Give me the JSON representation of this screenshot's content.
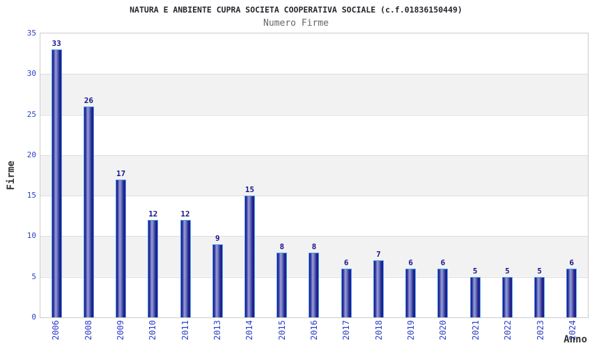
{
  "chart_data": {
    "type": "bar",
    "title": "NATURA E ANBIENTE CUPRA SOCIETA COOPERATIVA SOCIALE (c.f.01836150449)",
    "subtitle": "Numero Firme",
    "xlabel": "Anno",
    "ylabel": "Firme",
    "categories": [
      "2006",
      "2008",
      "2009",
      "2010",
      "2011",
      "2013",
      "2014",
      "2015",
      "2016",
      "2017",
      "2018",
      "2019",
      "2020",
      "2021",
      "2022",
      "2023",
      "2024"
    ],
    "values": [
      33,
      26,
      17,
      12,
      12,
      9,
      15,
      8,
      8,
      6,
      7,
      6,
      6,
      5,
      5,
      5,
      6
    ],
    "ylim": [
      0,
      35
    ],
    "yticks": [
      0,
      5,
      10,
      15,
      20,
      25,
      30,
      35
    ],
    "grid": true,
    "legend": false,
    "bar_labels_shown": true,
    "colors": {
      "title": "#26262e",
      "subtitle": "#666666",
      "tick_label": "#2e3ec9",
      "value_label": "#16168c",
      "axis_title": "#333333",
      "bar_border": "#4a9ded",
      "bar_dark": "#1a1a86",
      "bar_light": "#98a0d8",
      "band_gray": "#f2f2f2",
      "gridline": "#dddddd",
      "plot_border": "#cccccc"
    }
  }
}
